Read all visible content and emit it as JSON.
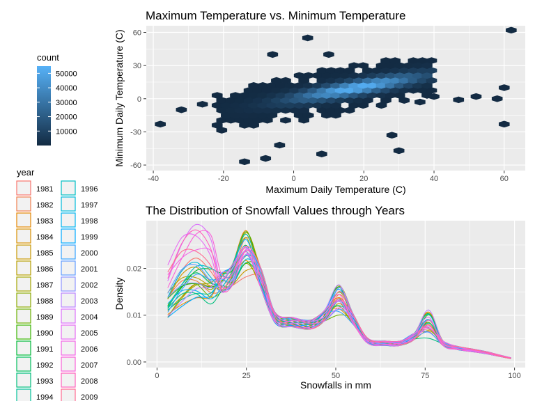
{
  "chart_data": [
    {
      "type": "heatmap",
      "subtype": "hexbin",
      "title": "Maximum Temperature vs. Minimum Temperature",
      "xlabel": "Maximum Daily Temperature (C)",
      "ylabel": "Minimum Daily Temperature (C)",
      "xlim": [
        -42,
        66
      ],
      "ylim": [
        -65,
        66
      ],
      "xticks": [
        -40,
        -20,
        0,
        20,
        40,
        60
      ],
      "yticks": [
        -60,
        -30,
        0,
        30,
        60
      ],
      "legend": {
        "title": "count",
        "ticks": [
          10000,
          20000,
          30000,
          40000,
          50000
        ],
        "range": [
          0,
          55000
        ],
        "low_color": "#132B43",
        "high_color": "#56B1F7"
      },
      "grid": true,
      "core_trend": {
        "x": [
          0,
          10,
          20,
          28
        ],
        "y": [
          0,
          5,
          11,
          15
        ]
      }
    },
    {
      "type": "line",
      "subtype": "density",
      "title": "The Distribution of Snowfall Values through Years",
      "xlabel": "Snowfalls in mm",
      "ylabel": "Density",
      "xlim": [
        -3,
        103
      ],
      "ylim": [
        -0.0012,
        0.0302
      ],
      "xticks": [
        0,
        25,
        50,
        75,
        100
      ],
      "yticks": [
        0.0,
        0.01,
        0.02
      ],
      "ytick_labels": [
        "0.00",
        "0.01",
        "0.02"
      ],
      "grid": true,
      "legend_title": "year",
      "legend_placement": "left",
      "x_range": [
        3,
        99
      ],
      "base_curve": {
        "x": [
          3,
          7,
          11,
          15,
          18,
          21,
          25,
          29,
          33,
          38,
          43,
          47,
          51,
          55,
          59,
          64,
          68,
          72,
          76,
          80,
          84,
          88,
          92,
          96,
          99
        ],
        "y": [
          0.014,
          0.0185,
          0.0205,
          0.019,
          0.017,
          0.0185,
          0.0245,
          0.018,
          0.0095,
          0.0085,
          0.008,
          0.01,
          0.014,
          0.009,
          0.0045,
          0.004,
          0.004,
          0.0055,
          0.008,
          0.004,
          0.003,
          0.0025,
          0.002,
          0.0013,
          0.0008
        ]
      },
      "years": [
        "1981",
        "1982",
        "1983",
        "1984",
        "1985",
        "1986",
        "1987",
        "1988",
        "1989",
        "1990",
        "1991",
        "1992",
        "1993",
        "1994",
        "1996",
        "1997",
        "1998",
        "1999",
        "2000",
        "2001",
        "2002",
        "2003",
        "2004",
        "2005",
        "2006",
        "2007",
        "2008",
        "2009"
      ],
      "colors": [
        "#F8766D",
        "#F07E4F",
        "#E58700",
        "#D89000",
        "#C99800",
        "#B79F00",
        "#A3A500",
        "#8BAB00",
        "#6BB100",
        "#39B600",
        "#00BA38",
        "#00BD5C",
        "#00BF7D",
        "#00C19A",
        "#00BFC4",
        "#00BBDA",
        "#00B4EF",
        "#00A9FF",
        "#35A2FF",
        "#619CFF",
        "#8E94FF",
        "#B983FF",
        "#DB72FB",
        "#E76BF3",
        "#F365E6",
        "#FA62D8",
        "#FF62BC",
        "#FF6C91"
      ]
    }
  ]
}
